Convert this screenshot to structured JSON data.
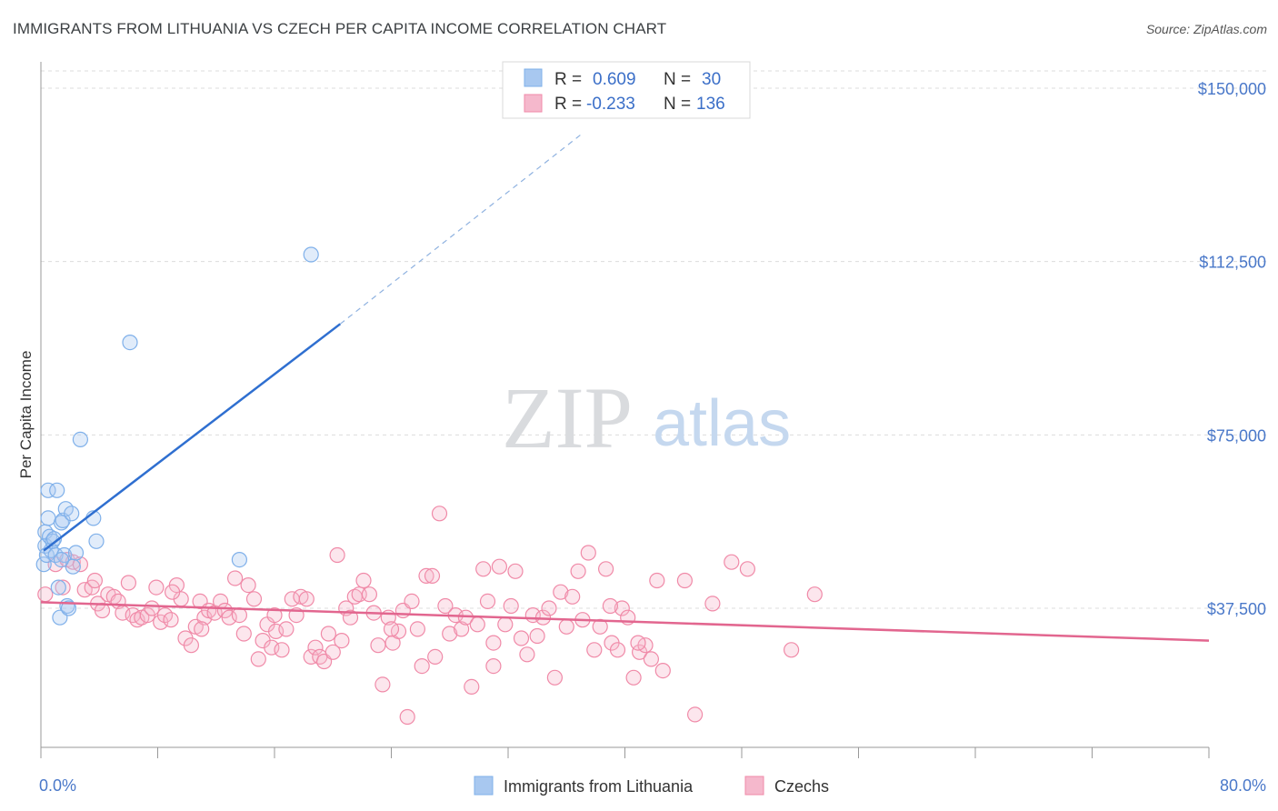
{
  "header": {
    "title": "IMMIGRANTS FROM LITHUANIA VS CZECH PER CAPITA INCOME CORRELATION CHART",
    "source": "Source: ZipAtlas.com"
  },
  "watermark": {
    "zip": "ZIP",
    "atlas": "atlas"
  },
  "legend": {
    "rows": [
      {
        "r_label": "R =",
        "r_value": "0.609",
        "n_label": "N =",
        "n_value": "30",
        "color": "#a8c8f0"
      },
      {
        "r_label": "R =",
        "r_value": "-0.233",
        "n_label": "N =",
        "n_value": "136",
        "color": "#f5b8cc"
      }
    ]
  },
  "bottom_legend": {
    "items": [
      {
        "label": "Immigrants from Lithuania",
        "color": "#a8c8f0"
      },
      {
        "label": "Czechs",
        "color": "#f5b8cc"
      }
    ]
  },
  "chart_data": {
    "type": "scatter",
    "ylabel": "Per Capita Income",
    "xlim": [
      0,
      80
    ],
    "ylim": [
      0,
      155000
    ],
    "x_tick_labels": [
      "0.0%",
      "80.0%"
    ],
    "y_ticks": [
      {
        "value": 37500,
        "label": "$37,500"
      },
      {
        "value": 75000,
        "label": "$75,000"
      },
      {
        "value": 112500,
        "label": "$112,500"
      },
      {
        "value": 150000,
        "label": "$150,000"
      }
    ],
    "grid": true,
    "series": [
      {
        "name": "Immigrants from Lithuania",
        "color": "#7fb0ea",
        "points": [
          [
            0.2,
            47000
          ],
          [
            0.3,
            51000
          ],
          [
            0.3,
            54000
          ],
          [
            0.4,
            49000
          ],
          [
            0.5,
            63000
          ],
          [
            0.5,
            57000
          ],
          [
            0.6,
            53000
          ],
          [
            0.7,
            50000
          ],
          [
            0.8,
            52000
          ],
          [
            1.0,
            49000
          ],
          [
            1.1,
            63000
          ],
          [
            1.2,
            42000
          ],
          [
            1.3,
            35500
          ],
          [
            1.4,
            56000
          ],
          [
            1.5,
            56500
          ],
          [
            1.6,
            49000
          ],
          [
            1.7,
            59000
          ],
          [
            1.8,
            38000
          ],
          [
            1.9,
            37500
          ],
          [
            2.1,
            58000
          ],
          [
            2.2,
            46500
          ],
          [
            2.4,
            49500
          ],
          [
            2.7,
            74000
          ],
          [
            3.6,
            57000
          ],
          [
            3.8,
            52000
          ],
          [
            6.1,
            95000
          ],
          [
            13.6,
            48000
          ],
          [
            18.5,
            114000
          ],
          [
            0.9,
            52500
          ],
          [
            1.4,
            48000
          ]
        ],
        "trend": {
          "x": [
            0.2,
            20.5
          ],
          "y": [
            50000,
            99000
          ],
          "dashed_to": [
            37,
            140000
          ]
        }
      },
      {
        "name": "Czechs",
        "color": "#f08aa8",
        "points": [
          [
            0.3,
            40500
          ],
          [
            1.0,
            47000
          ],
          [
            1.5,
            42000
          ],
          [
            1.8,
            48000
          ],
          [
            2.2,
            47500
          ],
          [
            2.7,
            47000
          ],
          [
            3.0,
            41500
          ],
          [
            3.5,
            42000
          ],
          [
            3.7,
            43500
          ],
          [
            3.9,
            38500
          ],
          [
            4.2,
            37000
          ],
          [
            4.6,
            40500
          ],
          [
            5.0,
            40000
          ],
          [
            5.3,
            39000
          ],
          [
            5.6,
            36500
          ],
          [
            6.0,
            43000
          ],
          [
            6.3,
            36000
          ],
          [
            6.6,
            35000
          ],
          [
            6.9,
            35500
          ],
          [
            7.3,
            36000
          ],
          [
            7.6,
            37500
          ],
          [
            7.9,
            42000
          ],
          [
            8.2,
            34500
          ],
          [
            8.5,
            36000
          ],
          [
            8.9,
            35000
          ],
          [
            9.3,
            42500
          ],
          [
            9.6,
            39500
          ],
          [
            9.9,
            31000
          ],
          [
            10.3,
            29500
          ],
          [
            10.6,
            33500
          ],
          [
            10.9,
            39000
          ],
          [
            11.2,
            35500
          ],
          [
            11.5,
            37000
          ],
          [
            11.9,
            36500
          ],
          [
            12.3,
            39000
          ],
          [
            12.6,
            37000
          ],
          [
            12.9,
            35500
          ],
          [
            13.3,
            44000
          ],
          [
            13.6,
            36000
          ],
          [
            13.9,
            32000
          ],
          [
            14.2,
            42500
          ],
          [
            14.6,
            39500
          ],
          [
            14.9,
            26500
          ],
          [
            15.2,
            30500
          ],
          [
            15.5,
            34000
          ],
          [
            15.8,
            29000
          ],
          [
            16.1,
            32500
          ],
          [
            16.5,
            28500
          ],
          [
            16.8,
            33000
          ],
          [
            17.2,
            39500
          ],
          [
            17.5,
            36000
          ],
          [
            17.8,
            40000
          ],
          [
            18.2,
            39500
          ],
          [
            18.5,
            27000
          ],
          [
            18.8,
            29000
          ],
          [
            19.1,
            27000
          ],
          [
            19.4,
            26000
          ],
          [
            19.7,
            32000
          ],
          [
            20.0,
            28000
          ],
          [
            20.3,
            49000
          ],
          [
            20.6,
            30500
          ],
          [
            20.9,
            37500
          ],
          [
            21.2,
            35500
          ],
          [
            21.5,
            40000
          ],
          [
            21.8,
            40500
          ],
          [
            22.1,
            43500
          ],
          [
            22.5,
            40500
          ],
          [
            22.8,
            36500
          ],
          [
            23.1,
            29500
          ],
          [
            23.4,
            21000
          ],
          [
            23.8,
            35500
          ],
          [
            24.1,
            30000
          ],
          [
            24.5,
            32500
          ],
          [
            24.8,
            37000
          ],
          [
            25.1,
            14000
          ],
          [
            25.4,
            39000
          ],
          [
            25.8,
            33000
          ],
          [
            26.1,
            25000
          ],
          [
            26.4,
            44500
          ],
          [
            26.8,
            44500
          ],
          [
            27.0,
            27000
          ],
          [
            27.3,
            58000
          ],
          [
            27.7,
            38000
          ],
          [
            28.0,
            32000
          ],
          [
            28.4,
            36000
          ],
          [
            28.8,
            33000
          ],
          [
            29.1,
            35500
          ],
          [
            29.5,
            20500
          ],
          [
            29.9,
            34000
          ],
          [
            30.3,
            46000
          ],
          [
            30.6,
            39000
          ],
          [
            31.0,
            30000
          ],
          [
            31.4,
            46500
          ],
          [
            31.8,
            34000
          ],
          [
            32.2,
            38000
          ],
          [
            32.5,
            45500
          ],
          [
            32.9,
            31000
          ],
          [
            33.3,
            27500
          ],
          [
            33.7,
            36000
          ],
          [
            34.0,
            31500
          ],
          [
            34.4,
            35500
          ],
          [
            34.8,
            37500
          ],
          [
            35.2,
            22500
          ],
          [
            35.6,
            41000
          ],
          [
            36.0,
            33500
          ],
          [
            36.4,
            40000
          ],
          [
            36.8,
            45500
          ],
          [
            37.1,
            35000
          ],
          [
            37.5,
            49500
          ],
          [
            37.9,
            28500
          ],
          [
            38.3,
            33500
          ],
          [
            38.7,
            46000
          ],
          [
            39.1,
            30000
          ],
          [
            39.5,
            28500
          ],
          [
            39.8,
            37500
          ],
          [
            40.2,
            35500
          ],
          [
            40.6,
            22500
          ],
          [
            41.0,
            28000
          ],
          [
            41.4,
            29500
          ],
          [
            41.8,
            26500
          ],
          [
            42.2,
            43500
          ],
          [
            42.6,
            24000
          ],
          [
            44.1,
            43500
          ],
          [
            44.8,
            14500
          ],
          [
            46.0,
            38500
          ],
          [
            47.3,
            47500
          ],
          [
            48.4,
            46000
          ],
          [
            51.4,
            28500
          ],
          [
            53.0,
            40500
          ],
          [
            39.0,
            38000
          ],
          [
            40.9,
            30000
          ],
          [
            9.0,
            41000
          ],
          [
            11.0,
            33000
          ],
          [
            16.0,
            36000
          ],
          [
            24.0,
            33000
          ],
          [
            31.0,
            25000
          ]
        ],
        "trend": {
          "x": [
            0,
            80
          ],
          "y": [
            38800,
            30500
          ]
        }
      }
    ]
  }
}
